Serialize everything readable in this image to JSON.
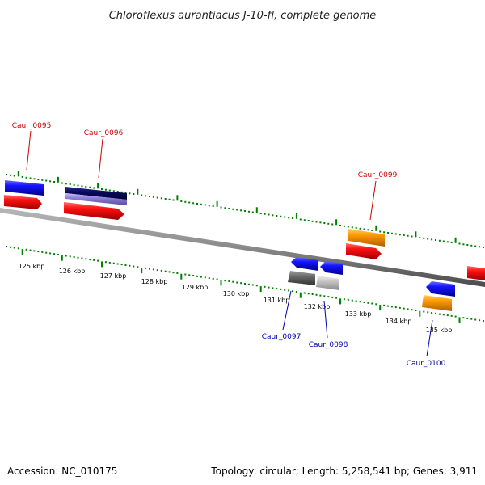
{
  "title": "Chloroflexus aurantiacus J-10-fl, complete genome",
  "footer": {
    "accession": "Accession: NC_010175",
    "summary": "Topology: circular; Length: 5,258,541 bp; Genes: 3,911"
  },
  "colors": {
    "backbone": "#8a8a8a",
    "ticks": "#008000",
    "forward_label": "#cc0000",
    "reverse_label": "#0000aa",
    "blue": "#1414ff",
    "red": "#ff1010",
    "orange": "#ff9a00",
    "navy": "#0a0a60",
    "purple": "#8f7fd8",
    "darkgray": "#6a6a6a",
    "lightgray": "#c4c4c4"
  },
  "ticks": [
    {
      "label": "125 kbp",
      "kbp": 125
    },
    {
      "label": "126 kbp",
      "kbp": 126
    },
    {
      "label": "127 kbp",
      "kbp": 127
    },
    {
      "label": "128 kbp",
      "kbp": 128
    },
    {
      "label": "129 kbp",
      "kbp": 129
    },
    {
      "label": "130 kbp",
      "kbp": 130
    },
    {
      "label": "131 kbp",
      "kbp": 131
    },
    {
      "label": "132 kbp",
      "kbp": 132
    },
    {
      "label": "133 kbp",
      "kbp": 133
    },
    {
      "label": "134 kbp",
      "kbp": 134
    },
    {
      "label": "135 kbp",
      "kbp": 135
    }
  ],
  "genes_forward": [
    {
      "label": "Caur_0095"
    },
    {
      "label": "Caur_0096"
    },
    {
      "label": "Caur_0099"
    }
  ],
  "genes_reverse": [
    {
      "label": "Caur_0097"
    },
    {
      "label": "Caur_0098"
    },
    {
      "label": "Caur_0100"
    }
  ]
}
